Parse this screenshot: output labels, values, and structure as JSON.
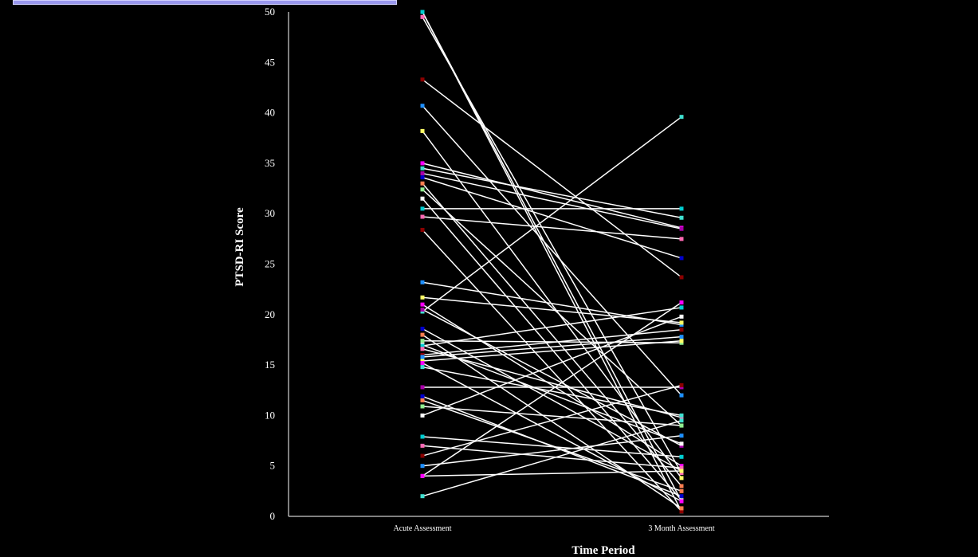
{
  "chart_data": {
    "type": "line",
    "title": "",
    "xlabel": "Time Period",
    "ylabel": "PTSD-RI Score",
    "categories": [
      "Acute Assessment",
      "3 Month Assessment"
    ],
    "ylim": [
      0,
      50
    ],
    "yticks": [
      0,
      5,
      10,
      15,
      20,
      25,
      30,
      35,
      40,
      45,
      50
    ],
    "grid": false,
    "legend": "none",
    "series": [
      {
        "values": [
          50,
          0.5
        ]
      },
      {
        "values": [
          50,
          1.5
        ]
      },
      {
        "values": [
          49.5,
          4.3
        ]
      },
      {
        "values": [
          43.3,
          23.7
        ]
      },
      {
        "values": [
          40.7,
          12.0
        ]
      },
      {
        "values": [
          38.2,
          3.8
        ]
      },
      {
        "values": [
          35.0,
          28.6
        ]
      },
      {
        "values": [
          34.5,
          29.6
        ]
      },
      {
        "values": [
          34.0,
          28.5
        ]
      },
      {
        "values": [
          33.6,
          25.6
        ]
      },
      {
        "values": [
          33.0,
          3.0
        ]
      },
      {
        "values": [
          32.4,
          9.0
        ]
      },
      {
        "values": [
          31.5,
          1.6
        ]
      },
      {
        "values": [
          30.5,
          30.5
        ]
      },
      {
        "values": [
          29.7,
          27.5
        ]
      },
      {
        "values": [
          28.4,
          0.5
        ]
      },
      {
        "values": [
          23.2,
          19.0
        ]
      },
      {
        "values": [
          21.7,
          19.2
        ]
      },
      {
        "values": [
          21.0,
          5.0
        ]
      },
      {
        "values": [
          20.3,
          39.6
        ]
      },
      {
        "values": [
          20.5,
          7.0
        ]
      },
      {
        "values": [
          18.6,
          4.5
        ]
      },
      {
        "values": [
          18.0,
          0.8
        ]
      },
      {
        "values": [
          17.4,
          17.2
        ]
      },
      {
        "values": [
          17.0,
          7.2
        ]
      },
      {
        "values": [
          16.9,
          20.7
        ]
      },
      {
        "values": [
          16.6,
          9.8
        ]
      },
      {
        "values": [
          16.0,
          18.5
        ]
      },
      {
        "values": [
          15.8,
          17.8
        ]
      },
      {
        "values": [
          15.4,
          17.4
        ]
      },
      {
        "values": [
          15.2,
          1.5
        ]
      },
      {
        "values": [
          14.8,
          10.0
        ]
      },
      {
        "values": [
          12.8,
          12.8
        ]
      },
      {
        "values": [
          11.9,
          2.0
        ]
      },
      {
        "values": [
          11.5,
          2.5
        ]
      },
      {
        "values": [
          10.9,
          9.0
        ]
      },
      {
        "values": [
          10.0,
          19.8
        ]
      },
      {
        "values": [
          7.9,
          5.9
        ]
      },
      {
        "values": [
          7.0,
          4.8
        ]
      },
      {
        "values": [
          6.0,
          13.0
        ]
      },
      {
        "values": [
          5.0,
          8.0
        ]
      },
      {
        "values": [
          4.0,
          4.5
        ]
      },
      {
        "values": [
          4.0,
          21.2
        ]
      },
      {
        "values": [
          2.0,
          9.5
        ]
      }
    ]
  },
  "colors": {
    "background": "#000000",
    "line": "#ffffff",
    "markers": [
      "#ffffff",
      "#00ced1",
      "#ff69b4",
      "#8b0000",
      "#1e90ff",
      "#ffff66",
      "#ff00ff",
      "#40e0d0",
      "#aa00aa",
      "#0000cd",
      "#ff7f50",
      "#90ee90"
    ]
  }
}
